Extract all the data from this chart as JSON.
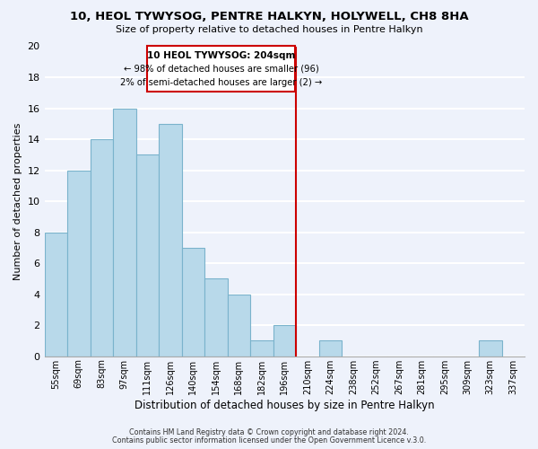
{
  "title": "10, HEOL TYWYSOG, PENTRE HALKYN, HOLYWELL, CH8 8HA",
  "subtitle": "Size of property relative to detached houses in Pentre Halkyn",
  "xlabel": "Distribution of detached houses by size in Pentre Halkyn",
  "ylabel": "Number of detached properties",
  "bin_labels": [
    "55sqm",
    "69sqm",
    "83sqm",
    "97sqm",
    "111sqm",
    "126sqm",
    "140sqm",
    "154sqm",
    "168sqm",
    "182sqm",
    "196sqm",
    "210sqm",
    "224sqm",
    "238sqm",
    "252sqm",
    "267sqm",
    "281sqm",
    "295sqm",
    "309sqm",
    "323sqm",
    "337sqm"
  ],
  "bar_heights": [
    8,
    12,
    14,
    16,
    13,
    15,
    7,
    5,
    4,
    1,
    2,
    0,
    1,
    0,
    0,
    0,
    0,
    0,
    0,
    1,
    0
  ],
  "bar_color": "#b8d9ea",
  "bar_edge_color": "#7ab3cc",
  "ylim": [
    0,
    20
  ],
  "yticks": [
    0,
    2,
    4,
    6,
    8,
    10,
    12,
    14,
    16,
    18,
    20
  ],
  "vline_color": "#cc0000",
  "annotation_title": "10 HEOL TYWYSOG: 204sqm",
  "annotation_line1": "← 98% of detached houses are smaller (96)",
  "annotation_line2": "2% of semi-detached houses are larger (2) →",
  "footer_line1": "Contains HM Land Registry data © Crown copyright and database right 2024.",
  "footer_line2": "Contains public sector information licensed under the Open Government Licence v.3.0.",
  "background_color": "#eef2fb",
  "grid_color": "#ffffff"
}
